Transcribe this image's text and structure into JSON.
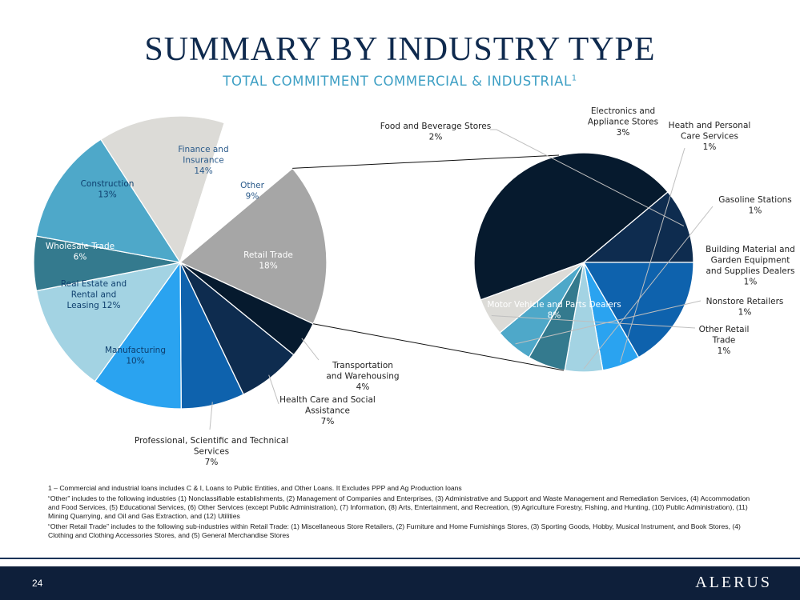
{
  "header": {
    "title": "SUMMARY BY INDUSTRY TYPE",
    "subtitle": "TOTAL COMMITMENT COMMERCIAL & INDUSTRIAL",
    "subtitle_sup": "1"
  },
  "chart_data": [
    {
      "type": "pie",
      "title": "",
      "slices": [
        {
          "name": "Retail Trade",
          "pct_label": "18%",
          "value": 18,
          "color": "#a6a6a6"
        },
        {
          "name": "Transportation and Warehousing",
          "pct_label": "4%",
          "value": 4,
          "color": "#061a2e"
        },
        {
          "name": "Health Care and Social Assistance",
          "pct_label": "7%",
          "value": 7,
          "color": "#0e2c4f"
        },
        {
          "name": "Professional, Scientific and Technical Services",
          "pct_label": "7%",
          "value": 7,
          "color": "#0e62ad"
        },
        {
          "name": "Manufacturing",
          "pct_label": "10%",
          "value": 10,
          "color": "#2aa3f0"
        },
        {
          "name": "Real Estate and Rental and Leasing",
          "pct_label": "12%",
          "value": 12,
          "color": "#a3d3e3"
        },
        {
          "name": "Wholesale Trade",
          "pct_label": "6%",
          "value": 6,
          "color": "#347a8e"
        },
        {
          "name": "Construction",
          "pct_label": "13%",
          "value": 13,
          "color": "#4ea8c9"
        },
        {
          "name": "Finance and Insurance",
          "pct_label": "14%",
          "value": 14,
          "color": "#dcdbd7"
        },
        {
          "name": "Other",
          "pct_label": "9%",
          "value": 9,
          "color": "#ffffff"
        }
      ]
    },
    {
      "type": "pie",
      "title": "",
      "breakdown_of": "Retail Trade",
      "slices": [
        {
          "name": "Motor Vehicle and Parts Dealers",
          "pct_label": "8%",
          "value": 8,
          "color": "#061a2e"
        },
        {
          "name": "Food and Beverage Stores",
          "pct_label": "2%",
          "value": 2,
          "color": "#0e2c4f"
        },
        {
          "name": "Electronics and Appliance Stores",
          "pct_label": "3%",
          "value": 3,
          "color": "#0e62ad"
        },
        {
          "name": "Heath and Personal Care Services",
          "pct_label": "1%",
          "value": 1,
          "color": "#2aa3f0"
        },
        {
          "name": "Gasoline Stations",
          "pct_label": "1%",
          "value": 1,
          "color": "#a3d3e3"
        },
        {
          "name": "Building Material and Garden Equipment and Supplies Dealers",
          "pct_label": "1%",
          "value": 1,
          "color": "#347a8e"
        },
        {
          "name": "Nonstore Retailers",
          "pct_label": "1%",
          "value": 1,
          "color": "#4ea8c9"
        },
        {
          "name": "Other Retail Trade",
          "pct_label": "1%",
          "value": 1,
          "color": "#dcdbd7"
        }
      ]
    }
  ],
  "footnotes": [
    "1 – Commercial and industrial loans includes C & I, Loans to Public Entities, and Other Loans. It Excludes PPP and Ag Production loans",
    "“Other” includes to the following industries (1) Nonclassifiable establishments, (2) Management of Companies and Enterprises, (3) Administrative and Support and Waste Management and Remediation Services, (4) Accommodation and Food Services, (5) Educational Services, (6) Other Services (except Public Administration), (7) Information, (8) Arts, Entertainment, and Recreation, (9) Agriculture Forestry, Fishing, and Hunting, (10) Public Administration), (11) Mining Quarrying, and Oil and Gas Extraction, and (12) Utilities",
    "“Other Retail Trade” includes to the following sub-industries within Retail Trade: (1) Miscellaneous Store Retailers, (2) Furniture and Home Furnishings Stores, (3) Sporting Goods, Hobby, Musical Instrument, and Book Stores, (4) Clothing and Clothing Accessories Stores, and (5) General Merchandise Stores"
  ],
  "footer": {
    "page_number": "24",
    "logo": "ALERUS"
  }
}
